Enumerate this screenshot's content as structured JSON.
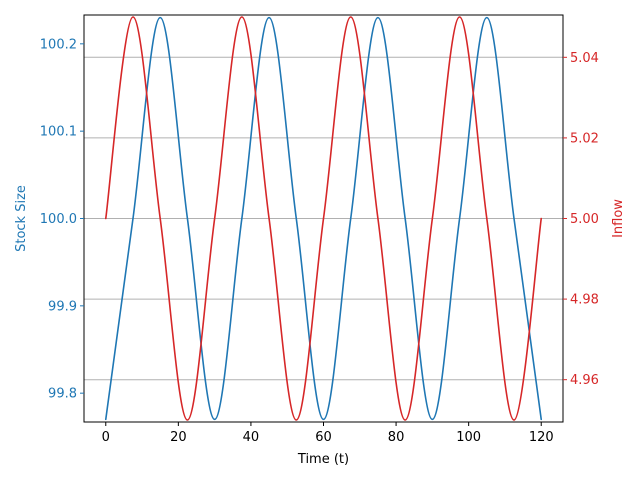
{
  "chart_data": {
    "type": "line",
    "title": "",
    "xlabel": "Time (t)",
    "ylabel_left": "Stock Size",
    "ylabel_right": "Inflow",
    "xlim": [
      -6,
      126
    ],
    "ylim_left": [
      99.767,
      100.233
    ],
    "ylim_right": [
      4.9495,
      5.0505
    ],
    "xticks": [
      0,
      20,
      40,
      60,
      80,
      100,
      120
    ],
    "yticks_left": [
      99.8,
      99.9,
      100.0,
      100.1,
      100.2
    ],
    "yticks_right": [
      4.96,
      4.98,
      5.0,
      5.02,
      5.04
    ],
    "grid": "horizontal lines at right-axis ticks",
    "colors": {
      "left": "#1f77b4",
      "right": "#d62728",
      "grid": "#b0b0b0"
    },
    "series": [
      {
        "axis": "left",
        "x": [
          0,
          7.5,
          15,
          22.5,
          30,
          37.5,
          45,
          52.5,
          60,
          67.5,
          75,
          82.5,
          90,
          97.5,
          105,
          112.5,
          120
        ],
        "values": [
          99.77,
          100.0,
          100.23,
          100.0,
          99.77,
          100.0,
          100.23,
          100.0,
          99.77,
          100.0,
          100.23,
          100.0,
          99.77,
          100.0,
          100.23,
          100.0,
          99.77
        ]
      },
      {
        "axis": "right",
        "x": [
          0,
          7.5,
          15,
          22.5,
          30,
          37.5,
          45,
          52.5,
          60,
          67.5,
          75,
          82.5,
          90,
          97.5,
          105,
          112.5,
          120
        ],
        "values": [
          5.0,
          5.05,
          5.0,
          4.95,
          5.0,
          5.05,
          5.0,
          4.95,
          5.0,
          5.05,
          5.0,
          4.95,
          5.0,
          5.05,
          5.0,
          4.95,
          5.0
        ]
      }
    ]
  }
}
